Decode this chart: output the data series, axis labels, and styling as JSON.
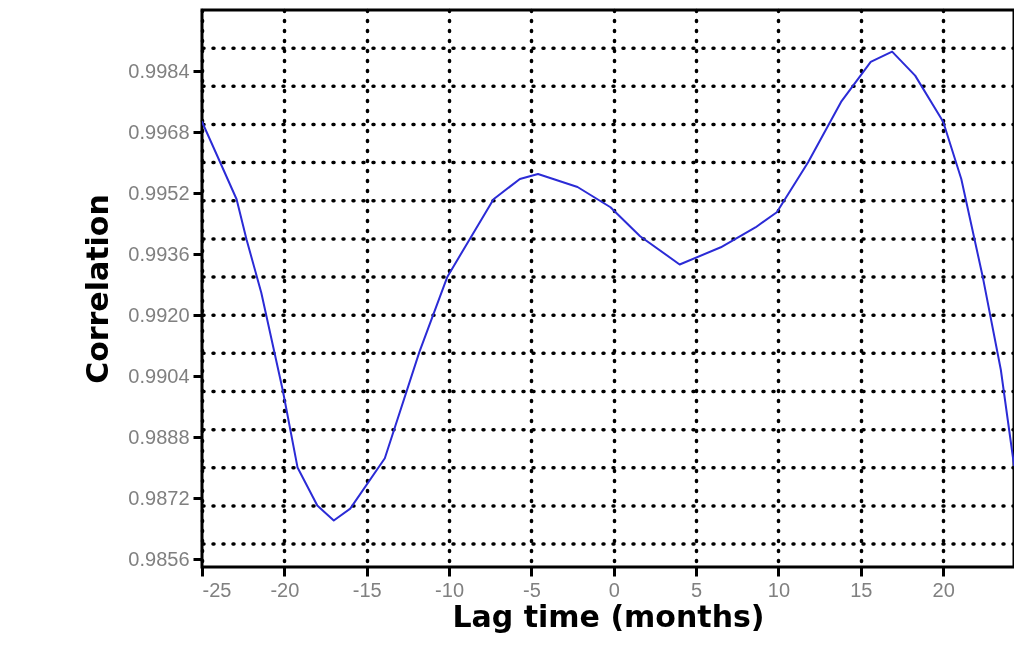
{
  "chart_data": {
    "type": "line",
    "xlabel": "Lag time (months)",
    "ylabel": "Correlation",
    "x": [
      -25,
      -23.9,
      -22.9,
      -22.3,
      -21.4,
      -20.1,
      -19.2,
      -18.0,
      -17.0,
      -16.0,
      -13.9,
      -11.8,
      -10.1,
      -7.3,
      -5.7,
      -4.6,
      -2.2,
      -0.2,
      1.6,
      4.0,
      6.5,
      8.6,
      9.9,
      11.8,
      13.8,
      15.6,
      16.9,
      18.3,
      20.0,
      21.1,
      22.4,
      23.5,
      24.3
    ],
    "series": [
      {
        "color": "#2b2bd6",
        "values": [
          0.99707,
          0.99601,
          0.99504,
          0.99399,
          0.99259,
          0.99004,
          0.98801,
          0.98701,
          0.98662,
          0.98693,
          0.98825,
          0.99104,
          0.99301,
          0.99504,
          0.99557,
          0.9957,
          0.99536,
          0.99483,
          0.99407,
          0.99333,
          0.99378,
          0.9943,
          0.9947,
          0.99601,
          0.99759,
          0.99864,
          0.99891,
          0.99828,
          0.99707,
          0.99557,
          0.99301,
          0.99057,
          0.98807
        ]
      }
    ],
    "xlim": [
      -25,
      24.3
    ],
    "xticks": [
      -25,
      -20,
      -15,
      -10,
      -5,
      0,
      5,
      10,
      15,
      20
    ],
    "ylim": [
      0.9854,
      1.0
    ],
    "yticks": [
      0.9856,
      0.9872,
      0.9888,
      0.9904,
      {
        "value": 0.992,
        "label": "0.9920"
      },
      0.9936,
      0.9952,
      0.9968,
      0.9984,
      {
        "value": 0.986,
        "label": null
      },
      {
        "value": 0.987,
        "label": null
      },
      {
        "value": 0.988,
        "label": null
      },
      {
        "value": 0.989,
        "label": null
      },
      {
        "value": 0.99,
        "label": null
      },
      {
        "value": 0.991,
        "label": null
      },
      {
        "value": 0.992,
        "label": null
      },
      {
        "value": 0.993,
        "label": null
      },
      {
        "value": 0.994,
        "label": null
      },
      {
        "value": 0.995,
        "label": null
      },
      {
        "value": 0.996,
        "label": null
      },
      {
        "value": 0.997,
        "label": null
      },
      {
        "value": 0.998,
        "label": null
      },
      {
        "value": 0.999,
        "label": null
      }
    ],
    "grid": true,
    "line_style": "solid",
    "marker": "none"
  }
}
